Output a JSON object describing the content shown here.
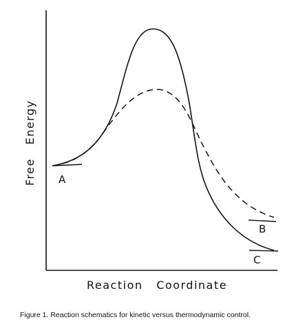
{
  "figure": {
    "ylabel": "Free   Energy",
    "xlabel": "Reaction   Coordinate",
    "point_labels": {
      "start": "A",
      "kinetic_product": "B",
      "thermodynamic_product": "C"
    },
    "curves": [
      {
        "style": "solid",
        "description_key": "higher barrier path to C"
      },
      {
        "style": "dashed",
        "description_key": "lower barrier path to B"
      }
    ],
    "line_color": "#111111",
    "caption": "Figure 1. Reaction schematics for kinetic versus thermodynamic control."
  }
}
